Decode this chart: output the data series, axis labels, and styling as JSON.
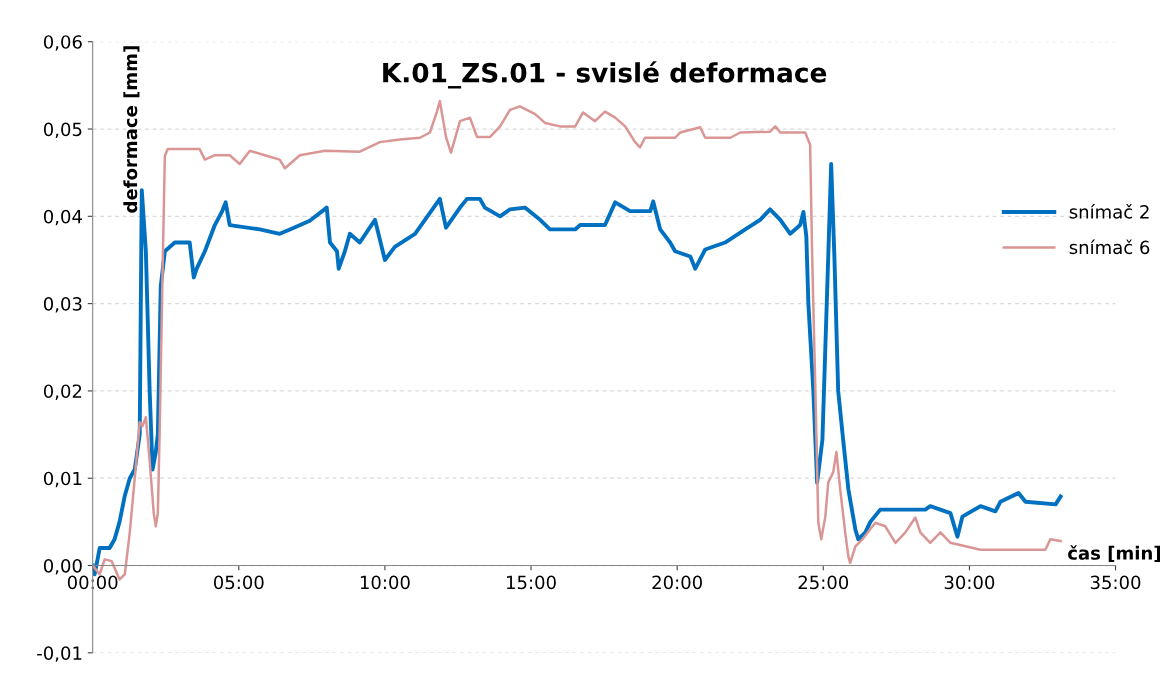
{
  "chart_data": {
    "type": "line",
    "title": "K.01_ZS.01 - svislé deformace",
    "xlabel": "čas [min]",
    "ylabel": "deformace [mm]",
    "xlim": [
      0,
      35
    ],
    "ylim": [
      -0.01,
      0.06
    ],
    "xticks": [
      {
        "value": 0,
        "label": "00:00"
      },
      {
        "value": 5,
        "label": "05:00"
      },
      {
        "value": 10,
        "label": "10:00"
      },
      {
        "value": 15,
        "label": "15:00"
      },
      {
        "value": 20,
        "label": "20:00"
      },
      {
        "value": 25,
        "label": "25:00"
      },
      {
        "value": 30,
        "label": "30:00"
      },
      {
        "value": 35,
        "label": "35:00"
      }
    ],
    "yticks": [
      {
        "value": -0.01,
        "label": "-0,01"
      },
      {
        "value": 0,
        "label": "0,00"
      },
      {
        "value": 0.01,
        "label": "0,01"
      },
      {
        "value": 0.02,
        "label": "0,02"
      },
      {
        "value": 0.03,
        "label": "0,03"
      },
      {
        "value": 0.04,
        "label": "0,04"
      },
      {
        "value": 0.05,
        "label": "0,05"
      },
      {
        "value": 0.06,
        "label": "0,06"
      }
    ],
    "grid": "y",
    "legend": "right",
    "marker": "none",
    "line_style": "solid",
    "series": [
      {
        "name": "snímač 2",
        "color": "#0070c0",
        "x": [
          0.0,
          0.07,
          0.24,
          0.58,
          0.75,
          0.92,
          1.1,
          1.27,
          1.44,
          1.61,
          1.68,
          1.82,
          1.95,
          2.05,
          2.16,
          2.23,
          2.33,
          2.47,
          2.81,
          3.32,
          3.46,
          3.56,
          3.84,
          4.18,
          4.42,
          4.55,
          4.69,
          5.72,
          6.4,
          6.75,
          7.43,
          8.01,
          8.12,
          8.36,
          8.42,
          8.63,
          8.8,
          9.14,
          9.66,
          10.0,
          10.34,
          11.03,
          11.37,
          11.88,
          12.09,
          12.57,
          12.81,
          13.25,
          13.42,
          13.94,
          14.28,
          14.79,
          15.31,
          15.65,
          16.51,
          16.68,
          17.53,
          17.88,
          18.39,
          19.08,
          19.18,
          19.42,
          19.76,
          19.93,
          20.45,
          20.62,
          20.96,
          21.64,
          22.33,
          22.84,
          23.18,
          23.53,
          23.87,
          24.21,
          24.32,
          24.42,
          24.49,
          24.66,
          24.79,
          24.97,
          25.17,
          25.27,
          25.38,
          25.51,
          25.68,
          25.86,
          26.1,
          26.2,
          26.44,
          26.61,
          26.95,
          28.49,
          28.66,
          29.35,
          29.59,
          29.76,
          30.38,
          30.89,
          31.06,
          31.68,
          31.92,
          32.95,
          33.12
        ],
        "values": [
          0.0,
          -0.001,
          0.002,
          0.002,
          0.003,
          0.005,
          0.008,
          0.01,
          0.011,
          0.015,
          0.043,
          0.036,
          0.02,
          0.011,
          0.013,
          0.015,
          0.032,
          0.036,
          0.037,
          0.037,
          0.033,
          0.034,
          0.036,
          0.039,
          0.0405,
          0.0416,
          0.039,
          0.0385,
          0.038,
          0.0385,
          0.0395,
          0.041,
          0.037,
          0.036,
          0.034,
          0.036,
          0.038,
          0.037,
          0.0396,
          0.035,
          0.0365,
          0.038,
          0.0396,
          0.042,
          0.0387,
          0.041,
          0.042,
          0.042,
          0.041,
          0.04,
          0.0408,
          0.041,
          0.0396,
          0.0385,
          0.0385,
          0.039,
          0.039,
          0.0416,
          0.0406,
          0.0406,
          0.0417,
          0.0385,
          0.037,
          0.036,
          0.0354,
          0.034,
          0.0362,
          0.037,
          0.0385,
          0.0396,
          0.0408,
          0.0396,
          0.038,
          0.039,
          0.0405,
          0.0377,
          0.03,
          0.02,
          0.0095,
          0.0144,
          0.0354,
          0.046,
          0.0354,
          0.02,
          0.0144,
          0.0087,
          0.0041,
          0.003,
          0.0038,
          0.005,
          0.0064,
          0.0064,
          0.0068,
          0.006,
          0.0033,
          0.0056,
          0.0068,
          0.0062,
          0.0073,
          0.0083,
          0.0073,
          0.007,
          0.0079
        ]
      },
      {
        "name": "snímač 6",
        "color": "#d99694",
        "x": [
          0.0,
          0.24,
          0.41,
          0.65,
          0.92,
          1.1,
          1.27,
          1.44,
          1.61,
          1.71,
          1.82,
          1.95,
          2.09,
          2.16,
          2.23,
          2.29,
          2.4,
          2.47,
          2.57,
          3.66,
          3.84,
          4.18,
          4.69,
          5.03,
          5.38,
          5.89,
          6.4,
          6.58,
          7.09,
          7.95,
          9.14,
          9.83,
          10.51,
          11.2,
          11.54,
          11.78,
          11.88,
          12.09,
          12.26,
          12.57,
          12.91,
          13.15,
          13.6,
          13.94,
          14.28,
          14.62,
          15.14,
          15.48,
          15.99,
          16.51,
          16.78,
          17.19,
          17.53,
          17.88,
          18.22,
          18.56,
          18.73,
          18.9,
          19.93,
          20.1,
          20.79,
          20.96,
          21.82,
          22.16,
          23.18,
          23.36,
          23.53,
          24.38,
          24.55,
          24.62,
          24.73,
          24.83,
          24.93,
          25.07,
          25.17,
          25.34,
          25.45,
          25.58,
          25.75,
          25.86,
          25.92,
          26.1,
          26.34,
          26.78,
          27.12,
          27.47,
          27.81,
          28.15,
          28.32,
          28.66,
          29.01,
          29.35,
          30.38,
          32.6,
          32.77,
          33.12
        ],
        "values": [
          0.0,
          -0.001,
          0.0007,
          0.0005,
          -0.0016,
          -0.001,
          0.0038,
          0.01,
          0.0164,
          0.016,
          0.017,
          0.012,
          0.006,
          0.0045,
          0.006,
          0.015,
          0.035,
          0.0469,
          0.0477,
          0.0477,
          0.0465,
          0.047,
          0.047,
          0.046,
          0.0475,
          0.047,
          0.0465,
          0.0455,
          0.047,
          0.0475,
          0.0474,
          0.0485,
          0.0488,
          0.049,
          0.0496,
          0.052,
          0.0532,
          0.0491,
          0.0473,
          0.0509,
          0.0513,
          0.0491,
          0.0491,
          0.0503,
          0.0522,
          0.0526,
          0.0517,
          0.0507,
          0.0503,
          0.0503,
          0.0519,
          0.0509,
          0.052,
          0.0513,
          0.0503,
          0.0485,
          0.0479,
          0.049,
          0.049,
          0.0496,
          0.0502,
          0.049,
          0.049,
          0.0496,
          0.0497,
          0.0503,
          0.0496,
          0.0496,
          0.0482,
          0.0354,
          0.02,
          0.0049,
          0.003,
          0.0056,
          0.0095,
          0.0107,
          0.013,
          0.0087,
          0.0038,
          0.001,
          0.0003,
          0.0022,
          0.003,
          0.0049,
          0.0045,
          0.0026,
          0.0038,
          0.0055,
          0.0038,
          0.0026,
          0.0038,
          0.0026,
          0.0018,
          0.0018,
          0.003,
          0.0028
        ]
      }
    ]
  }
}
